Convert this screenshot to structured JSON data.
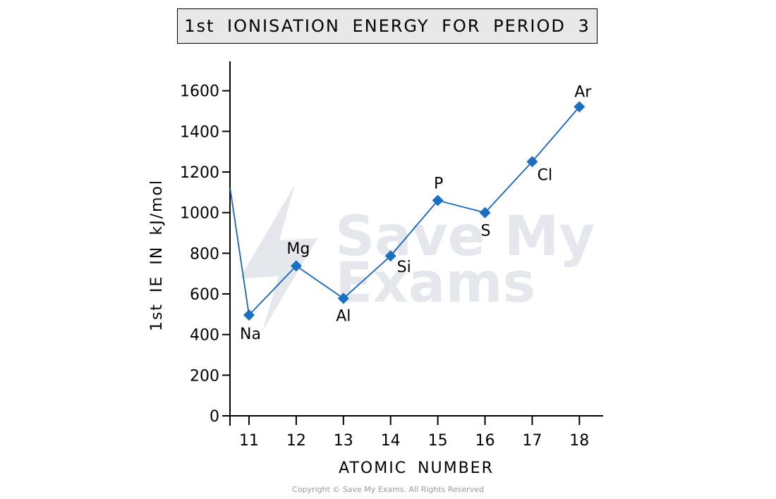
{
  "title": "1st IONISATION ENERGY FOR PERIOD 3",
  "copyright": "Copyright © Save My Exams. All Rights Reserved",
  "watermark": {
    "line1": "Save My",
    "line2": "Exams"
  },
  "colors": {
    "series": "#1565c0",
    "marker": "#1a6fc2",
    "axis": "#000000",
    "watermark": "#e4e7ec"
  },
  "chart_data": {
    "type": "line",
    "title": "1st IONISATION ENERGY FOR PERIOD 3",
    "xlabel": "ATOMIC NUMBER",
    "ylabel": "1st IE IN kJ/mol",
    "xlim": [
      10.6,
      18.5
    ],
    "ylim": [
      0,
      1600
    ],
    "x_ticks": [
      11,
      12,
      13,
      14,
      15,
      16,
      17,
      18
    ],
    "y_ticks": [
      0,
      200,
      400,
      600,
      800,
      1000,
      1200,
      1400,
      1600
    ],
    "grid": false,
    "legend": "none",
    "series": [
      {
        "points": [
          {
            "x": 11,
            "y": 496,
            "label": "Na"
          },
          {
            "x": 12,
            "y": 738,
            "label": "Mg"
          },
          {
            "x": 13,
            "y": 578,
            "label": "Al"
          },
          {
            "x": 14,
            "y": 787,
            "label": "Si"
          },
          {
            "x": 15,
            "y": 1060,
            "label": "P"
          },
          {
            "x": 16,
            "y": 1000,
            "label": "S"
          },
          {
            "x": 17,
            "y": 1251,
            "label": "Cl"
          },
          {
            "x": 18,
            "y": 1521,
            "label": "Ar"
          }
        ],
        "lead_in": {
          "x": 10.6,
          "y": 1120
        }
      }
    ]
  }
}
